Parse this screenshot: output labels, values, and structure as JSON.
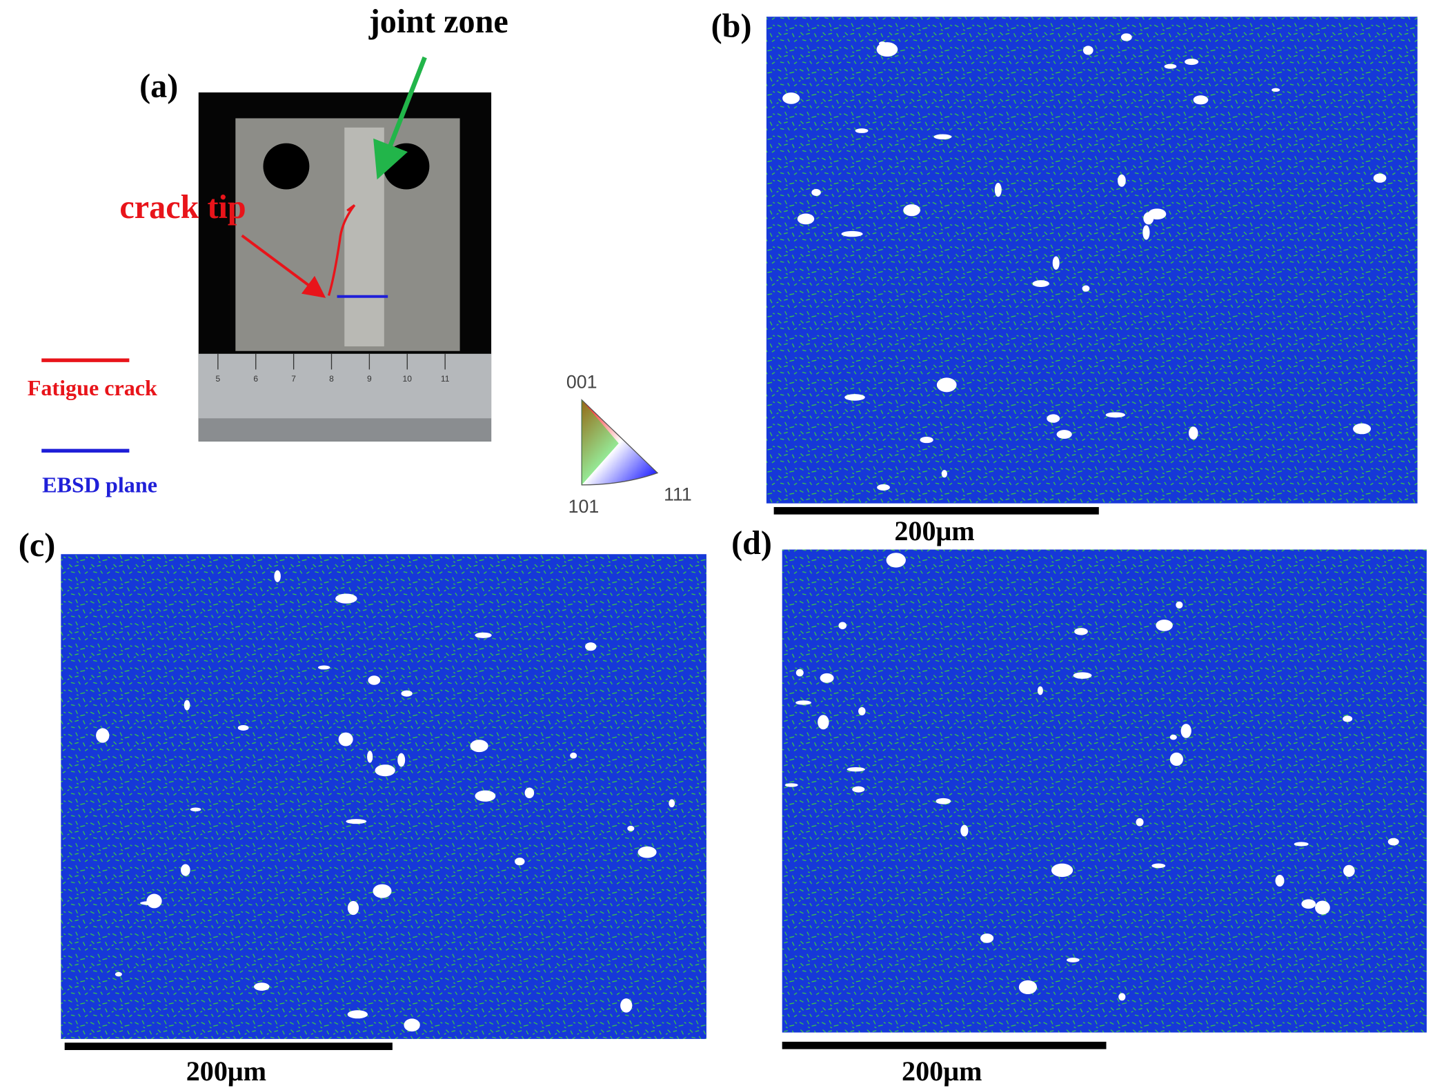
{
  "panels": [
    {
      "label": "(a)"
    },
    {
      "label": "(b)"
    },
    {
      "label": "(c)"
    },
    {
      "label": "(d)"
    }
  ],
  "annotations": {
    "joint_zone": "joint zone",
    "crack_tip": "crack tip"
  },
  "legend": [
    {
      "label": "Fatigue crack",
      "color": "#e8141a"
    },
    {
      "label": "EBSD plane",
      "color": "#1f1fd8"
    }
  ],
  "ruler": [
    "5",
    "6",
    "7",
    "8",
    "9",
    "10",
    "11"
  ],
  "ipf": {
    "labels": [
      "001",
      "101",
      "111"
    ]
  },
  "scale_bars": [
    "200μm",
    "200μm",
    "200μm"
  ]
}
